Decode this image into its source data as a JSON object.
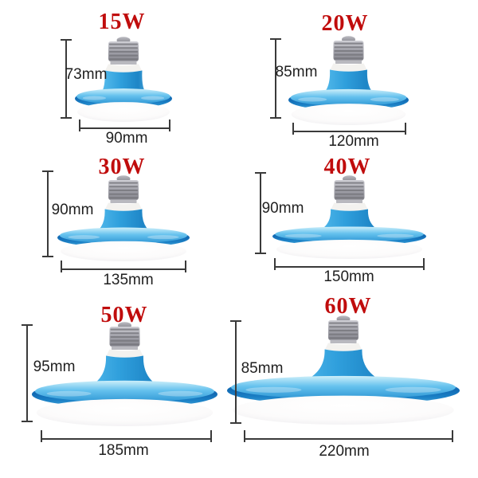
{
  "title": "LED UFO bulb size comparison sheet",
  "colors": {
    "background": "#ffffff",
    "watt_red": "#c00c0c",
    "dim_text": "#1f1f1f",
    "dim_line": "#3a3a3a",
    "bulb_blue_light": "#aee6f9",
    "bulb_blue_mid": "#37a6e0",
    "bulb_blue_deep": "#0f67b0",
    "base_gray": "#a5a5ab",
    "diffuser_white": "#ffffff"
  },
  "bulbs": [
    {
      "watt": "15W",
      "height_label": "73mm",
      "width_label": "90mm"
    },
    {
      "watt": "20W",
      "height_label": "85mm",
      "width_label": "120mm"
    },
    {
      "watt": "30W",
      "height_label": "90mm",
      "width_label": "135mm"
    },
    {
      "watt": "40W",
      "height_label": "90mm",
      "width_label": "150mm"
    },
    {
      "watt": "50W",
      "height_label": "95mm",
      "width_label": "185mm"
    },
    {
      "watt": "60W",
      "height_label": "85mm",
      "width_label": "220mm"
    }
  ]
}
